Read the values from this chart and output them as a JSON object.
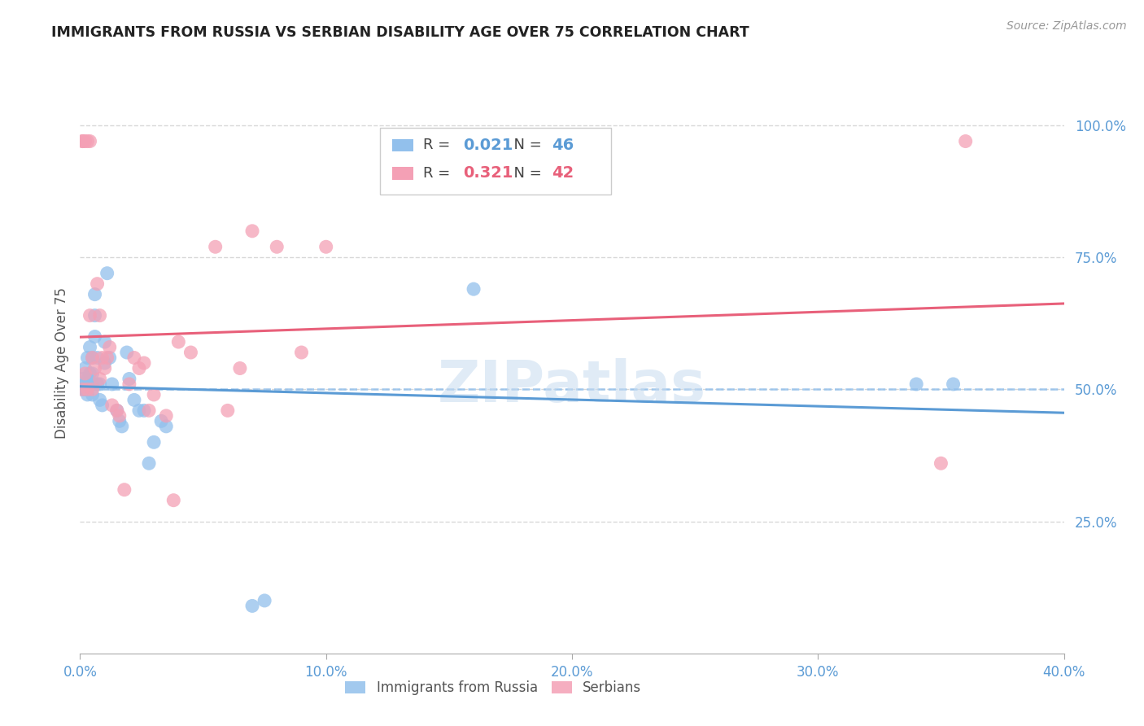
{
  "title": "IMMIGRANTS FROM RUSSIA VS SERBIAN DISABILITY AGE OVER 75 CORRELATION CHART",
  "source": "Source: ZipAtlas.com",
  "ylabel": "Disability Age Over 75",
  "xlim": [
    0.0,
    0.4
  ],
  "ylim": [
    0.0,
    1.1
  ],
  "xtick_labels": [
    "0.0%",
    "10.0%",
    "20.0%",
    "30.0%",
    "40.0%"
  ],
  "xtick_vals": [
    0.0,
    0.1,
    0.2,
    0.3,
    0.4
  ],
  "ytick_labels": [
    "100.0%",
    "75.0%",
    "50.0%",
    "25.0%"
  ],
  "ytick_vals": [
    1.0,
    0.75,
    0.5,
    0.25
  ],
  "russia_color": "#92C0EC",
  "serbia_color": "#F4A0B5",
  "russia_R": "0.021",
  "russia_N": "46",
  "serbia_R": "0.321",
  "serbia_N": "42",
  "russia_x": [
    0.001,
    0.001,
    0.002,
    0.002,
    0.002,
    0.003,
    0.003,
    0.003,
    0.003,
    0.004,
    0.004,
    0.004,
    0.005,
    0.005,
    0.005,
    0.005,
    0.006,
    0.006,
    0.006,
    0.007,
    0.007,
    0.008,
    0.008,
    0.009,
    0.01,
    0.01,
    0.011,
    0.012,
    0.013,
    0.015,
    0.016,
    0.017,
    0.019,
    0.02,
    0.022,
    0.024,
    0.026,
    0.028,
    0.03,
    0.033,
    0.035,
    0.07,
    0.075,
    0.16,
    0.34,
    0.355
  ],
  "russia_y": [
    0.5,
    0.52,
    0.5,
    0.51,
    0.54,
    0.49,
    0.5,
    0.52,
    0.56,
    0.51,
    0.53,
    0.58,
    0.49,
    0.51,
    0.53,
    0.56,
    0.6,
    0.64,
    0.68,
    0.51,
    0.56,
    0.48,
    0.51,
    0.47,
    0.55,
    0.59,
    0.72,
    0.56,
    0.51,
    0.46,
    0.44,
    0.43,
    0.57,
    0.52,
    0.48,
    0.46,
    0.46,
    0.36,
    0.4,
    0.44,
    0.43,
    0.09,
    0.1,
    0.69,
    0.51,
    0.51
  ],
  "serbia_x": [
    0.001,
    0.001,
    0.001,
    0.002,
    0.002,
    0.003,
    0.003,
    0.004,
    0.004,
    0.005,
    0.005,
    0.006,
    0.007,
    0.008,
    0.008,
    0.009,
    0.01,
    0.011,
    0.012,
    0.013,
    0.015,
    0.016,
    0.018,
    0.02,
    0.022,
    0.024,
    0.026,
    0.028,
    0.03,
    0.035,
    0.038,
    0.04,
    0.045,
    0.055,
    0.06,
    0.065,
    0.07,
    0.08,
    0.09,
    0.1,
    0.35,
    0.36
  ],
  "serbia_y": [
    0.97,
    0.97,
    0.5,
    0.97,
    0.53,
    0.97,
    0.5,
    0.97,
    0.64,
    0.56,
    0.5,
    0.54,
    0.7,
    0.52,
    0.64,
    0.56,
    0.54,
    0.56,
    0.58,
    0.47,
    0.46,
    0.45,
    0.31,
    0.51,
    0.56,
    0.54,
    0.55,
    0.46,
    0.49,
    0.45,
    0.29,
    0.59,
    0.57,
    0.77,
    0.46,
    0.54,
    0.8,
    0.77,
    0.57,
    0.77,
    0.36,
    0.97
  ],
  "watermark": "ZIPatlas",
  "background_color": "#ffffff",
  "grid_color": "#d8d8d8"
}
